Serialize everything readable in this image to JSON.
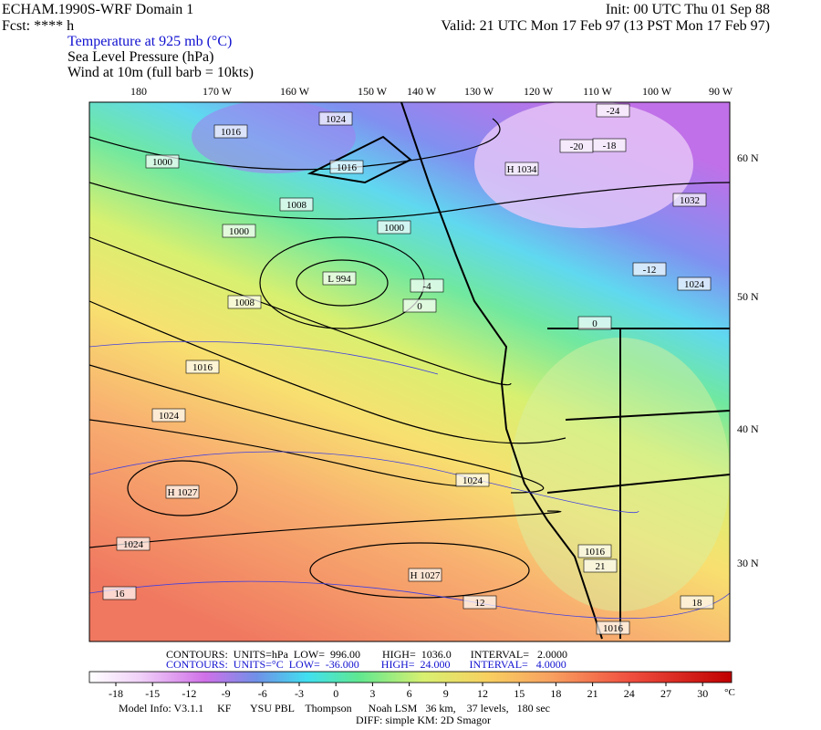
{
  "header": {
    "title": "ECHAM.1990S-WRF Domain 1",
    "fcst": "Fcst: **** h",
    "init": "Init: 00 UTC Thu 01 Sep 88",
    "valid": "Valid: 21 UTC Mon 17 Feb 97 (13 PST Mon 17 Feb 97)",
    "fields": [
      "Temperature at 925 mb (°C)",
      "Sea Level Pressure (hPa)",
      "Wind at 10m (full barb = 10kts)"
    ]
  },
  "map": {
    "longitudes": [
      "180",
      "170 W",
      "160 W",
      "150 W",
      "140 W",
      "130 W",
      "120 W",
      "110 W",
      "100 W",
      "90 W"
    ],
    "latitudes": [
      "60 N",
      "50 N",
      "40 N",
      "30 N"
    ],
    "labels": [
      "1024",
      "1016",
      "1000",
      "1016",
      "H 1034",
      "-24",
      "-20",
      "-18",
      "1008",
      "1000",
      "L 994",
      "1000",
      "1008",
      "1016",
      "1024",
      "H 1027",
      "1024",
      "H 1027",
      "1024",
      "1016",
      "1016",
      "1032",
      "1024",
      "-12",
      "-4",
      "0",
      "0",
      "12",
      "16",
      "18",
      "21"
    ]
  },
  "footer": {
    "contours_slp": "CONTOURS:  UNITS=hPa  LOW=  996.00        HIGH=  1036.0       INTERVAL=   2.0000",
    "contours_t": "CONTOURS:  UNITS=°C  LOW=  -36.000        HIGH=  24.000       INTERVAL=   4.0000",
    "model": "Model Info: V3.1.1     KF       YSU PBL    Thompson      Noah LSM   36 km,    37 levels,   180 sec",
    "diff": "DIFF: simple KM: 2D Smagor"
  },
  "colorbar": {
    "ticks": [
      -18,
      -15,
      -12,
      -9,
      -6,
      -3,
      0,
      3,
      6,
      9,
      12,
      15,
      18,
      21,
      24,
      27,
      30
    ],
    "unit": "°C"
  }
}
